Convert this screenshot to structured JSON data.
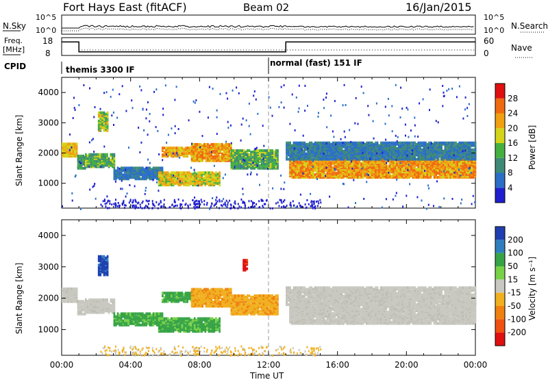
{
  "header": {
    "title": "Fort Hays East (fitACF)",
    "beam": "Beam 02",
    "date": "16/Jan/2015"
  },
  "noise_panel": {
    "left_label": "N.Sky",
    "right_label": "N.Search",
    "right_tick_top": "10^5",
    "right_tick_bottom": "10^0",
    "left_tick_top": "10^5",
    "left_tick_bottom": "10^0"
  },
  "freq_panel": {
    "left_label_line1": "Freq.",
    "left_label_line2": "[MHz]",
    "left_tick_top": "18",
    "left_tick_bottom": "8",
    "right_label": "Nave",
    "right_tick_top": "60",
    "right_tick_bottom": "0",
    "freq_segments": [
      {
        "from": 0,
        "to": 1.0,
        "value": 16.2
      },
      {
        "from": 1.0,
        "to": 13.0,
        "value": 10.2
      },
      {
        "from": 13.0,
        "to": 24.0,
        "value": 16.2
      }
    ]
  },
  "cpid": {
    "label": "CPID",
    "modes": [
      {
        "text": "themis 3300 IF",
        "start": 0
      },
      {
        "text": "normal (fast) 151 IF",
        "start": 12.0
      }
    ]
  },
  "chart_data": [
    {
      "type": "heatmap",
      "name": "power",
      "ylabel": "Slant Range [km]",
      "ylim": [
        180,
        4500
      ],
      "yticks": [
        "1000",
        "2000",
        "3000",
        "4000"
      ],
      "xlim": [
        0,
        24
      ],
      "colorbar_label": "Power [dB]",
      "colorbar_ticks": [
        "4",
        "8",
        "12",
        "16",
        "20",
        "24",
        "28"
      ],
      "colors": [
        "#1f1fd0",
        "#2a6ec8",
        "#3e8a78",
        "#44b040",
        "#d4d41a",
        "#f0a010",
        "#f06a10",
        "#e01010"
      ],
      "dashed_marker_time": 12.0
    },
    {
      "type": "heatmap",
      "name": "velocity",
      "ylabel": "Slant Range [km]",
      "ylim": [
        180,
        4500
      ],
      "yticks": [
        "1000",
        "2000",
        "3000",
        "4000"
      ],
      "xlim": [
        0,
        24
      ],
      "colorbar_label": "Velocity [m s⁻¹]",
      "colorbar_ticks": [
        "200",
        "100",
        "50",
        "15",
        "-15",
        "-50",
        "-100",
        "-200"
      ],
      "colors": [
        "#1f3fb0",
        "#2f7fbf",
        "#37a347",
        "#77d247",
        "#c8c8c0",
        "#f0b020",
        "#f08010",
        "#f05010",
        "#e01010"
      ],
      "dashed_marker_time": 12.0
    }
  ],
  "xaxis": {
    "ticks": [
      "00:00",
      "04:00",
      "08:00",
      "12:00",
      "16:00",
      "20:00",
      "00:00"
    ],
    "label": "Time UT"
  },
  "regions": [
    {
      "t0": 0.0,
      "t1": 0.9,
      "r0": 1850,
      "r1": 2300,
      "panel": "both",
      "power": [
        16,
        24
      ],
      "vel": "grey"
    },
    {
      "t0": 0.9,
      "t1": 1.35,
      "r0": 1450,
      "r1": 1900,
      "panel": "both",
      "power": [
        8,
        16
      ],
      "vel": "grey"
    },
    {
      "t0": 1.35,
      "t1": 3.1,
      "r0": 1500,
      "r1": 1950,
      "panel": "both",
      "power": [
        8,
        18
      ],
      "vel": "grey"
    },
    {
      "t0": 2.1,
      "t1": 2.7,
      "r0": 2700,
      "r1": 3300,
      "panel": "both",
      "power": [
        10,
        22
      ],
      "vel": "blue"
    },
    {
      "t0": 3.0,
      "t1": 5.8,
      "r0": 1100,
      "r1": 1500,
      "panel": "both",
      "power": [
        4,
        10
      ],
      "vel": "green"
    },
    {
      "t0": 5.8,
      "t1": 7.6,
      "r0": 1850,
      "r1": 2150,
      "panel": "both",
      "power": [
        16,
        26
      ],
      "vel": "green"
    },
    {
      "t0": 5.6,
      "t1": 9.2,
      "r0": 900,
      "r1": 1350,
      "panel": "both",
      "power": [
        14,
        24
      ],
      "vel": "green"
    },
    {
      "t0": 7.5,
      "t1": 9.8,
      "r0": 1700,
      "r1": 2250,
      "panel": "both",
      "power": [
        18,
        28
      ],
      "vel": "orange"
    },
    {
      "t0": 9.8,
      "t1": 12.5,
      "r0": 1450,
      "r1": 2050,
      "panel": "both",
      "power": [
        8,
        18
      ],
      "vel": "orange"
    },
    {
      "t0": 13.2,
      "t1": 24.0,
      "r0": 1150,
      "r1": 1750,
      "panel": "both",
      "power": [
        18,
        28
      ],
      "vel": "grey"
    },
    {
      "t0": 13.0,
      "t1": 24.0,
      "r0": 1750,
      "r1": 2300,
      "panel": "both",
      "power": [
        4,
        12
      ],
      "vel": "grey"
    },
    {
      "t0": 10.5,
      "t1": 10.8,
      "r0": 2850,
      "r1": 3200,
      "panel": "velocity",
      "power": [
        4,
        8
      ],
      "vel": "red"
    }
  ]
}
